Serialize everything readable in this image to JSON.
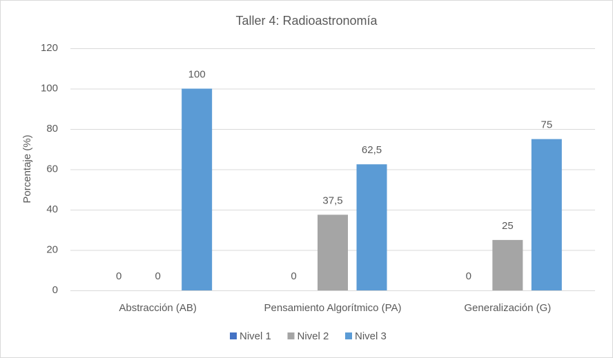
{
  "chart_data": {
    "type": "bar",
    "title": "Taller 4: Radioastronomía",
    "y_label": "Porcentaje (%)",
    "categories": [
      "Abstracción (AB)",
      "Pensamiento Algorítmico (PA)",
      "Generalización (G)"
    ],
    "series": [
      {
        "name": "Nivel 1",
        "color": "#4472c4",
        "values": [
          0,
          0,
          0
        ]
      },
      {
        "name": "Nivel 2",
        "color": "#a5a5a5",
        "values": [
          0,
          37.5,
          25
        ],
        "value_labels": [
          "0",
          "37,5",
          "25"
        ]
      },
      {
        "name": "Nivel 3",
        "color": "#5b9bd5",
        "values": [
          100,
          62.5,
          75
        ],
        "value_labels": [
          "100",
          "62,5",
          "75"
        ]
      }
    ],
    "ylim": [
      0,
      120
    ],
    "yticks": [
      0,
      20,
      40,
      60,
      80,
      100,
      120
    ],
    "grid": true,
    "legend": "bottom"
  }
}
